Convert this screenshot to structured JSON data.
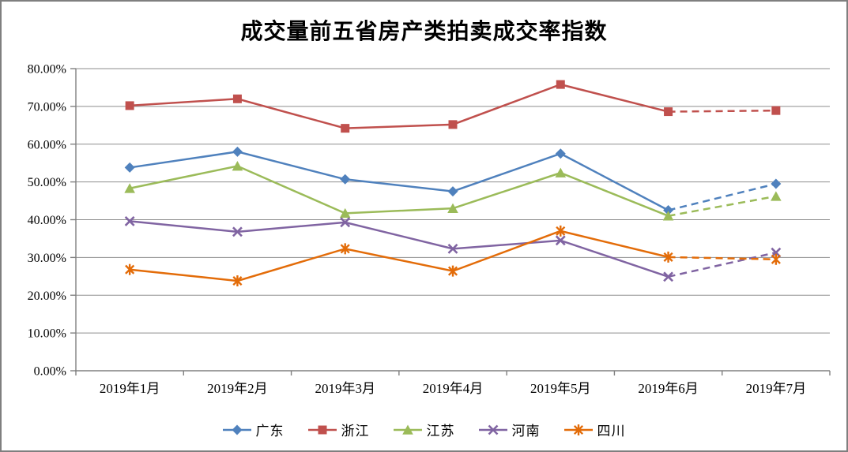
{
  "chart_data": {
    "type": "line",
    "title": "成交量前五省房产类拍卖成交率指数",
    "categories": [
      "2019年1月",
      "2019年2月",
      "2019年3月",
      "2019年4月",
      "2019年5月",
      "2019年6月",
      "2019年7月"
    ],
    "y_axis": {
      "min": 0,
      "max": 80,
      "step": 10,
      "unit": "%",
      "tick_labels_top_to_bottom": [
        "80.00%",
        "70.00%",
        "60.00%",
        "50.00%",
        "40.00%",
        "30.00%",
        "20.00%",
        "10.00%",
        "0.00%"
      ]
    },
    "grid": true,
    "legend_position": "bottom",
    "note": "last segment (2019年6月 to 2019年7月) is dashed for every series",
    "series": [
      {
        "name": "广东",
        "color": "#4F81BD",
        "marker": "diamond",
        "values": [
          53.8,
          58.0,
          50.7,
          47.5,
          57.5,
          42.5,
          49.5
        ],
        "dashed_from_index": 5
      },
      {
        "name": "浙江",
        "color": "#C0504D",
        "marker": "square",
        "values": [
          70.2,
          72.0,
          64.2,
          65.2,
          75.8,
          68.6,
          68.9
        ],
        "dashed_from_index": 5
      },
      {
        "name": "江苏",
        "color": "#9BBB59",
        "marker": "triangle",
        "values": [
          48.3,
          54.2,
          41.7,
          43.0,
          52.4,
          41.0,
          46.2
        ],
        "dashed_from_index": 5
      },
      {
        "name": "河南",
        "color": "#8064A2",
        "marker": "x",
        "values": [
          39.6,
          36.8,
          39.3,
          32.3,
          34.5,
          24.9,
          31.3
        ],
        "dashed_from_index": 5
      },
      {
        "name": "四川",
        "color": "#E36C09",
        "marker": "asterisk",
        "values": [
          26.8,
          23.8,
          32.3,
          26.4,
          37.0,
          30.1,
          29.5
        ],
        "dashed_from_index": 5
      }
    ],
    "colors": {
      "gridline": "#8E8E8E",
      "axis": "#808080",
      "frame_border": "#7F7F7F",
      "background": "#FFFFFF",
      "text": "#000000"
    }
  }
}
